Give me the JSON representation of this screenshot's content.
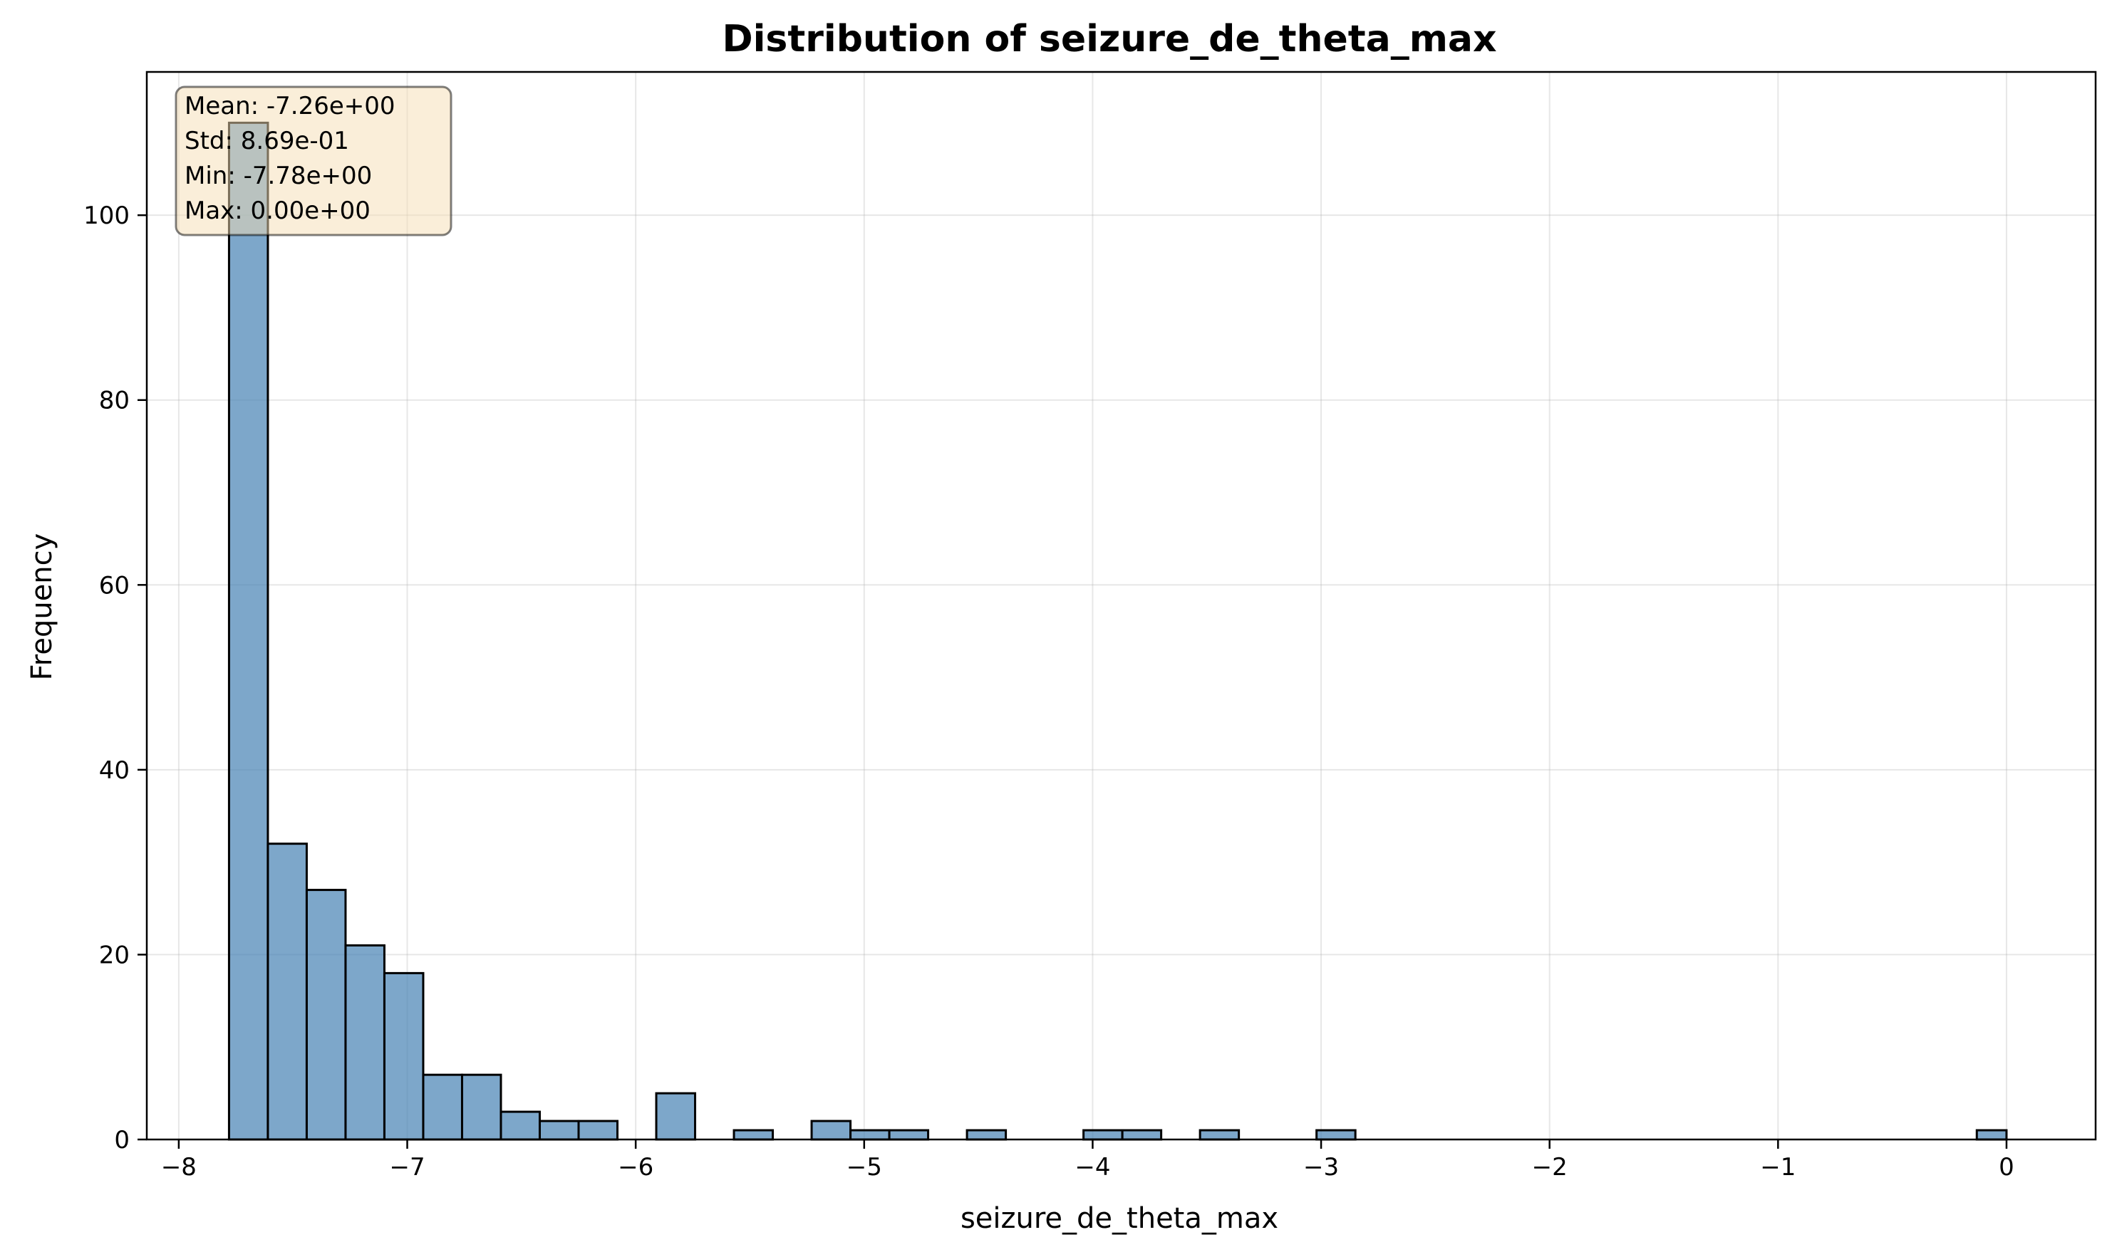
{
  "chart_data": {
    "type": "bar",
    "title": "Distribution of seizure_de_theta_max",
    "xlabel": "seizure_de_theta_max",
    "ylabel": "Frequency",
    "xlim": [
      -8.14,
      0.39
    ],
    "ylim": [
      0,
      115.5
    ],
    "x_ticks": [
      -8,
      -7,
      -6,
      -5,
      -4,
      -3,
      -2,
      -1,
      0
    ],
    "y_ticks": [
      0,
      20,
      40,
      60,
      80,
      100
    ],
    "grid": true,
    "bin_edges": [
      -7.78,
      -7.61,
      -7.44,
      -7.27,
      -7.1,
      -6.93,
      -6.76,
      -6.59,
      -6.42,
      -6.25,
      -6.08,
      -5.91,
      -5.74,
      -5.57,
      -5.4,
      -5.23,
      -5.06,
      -4.89,
      -4.72,
      -4.55,
      -4.38,
      -4.21,
      -4.04,
      -3.87,
      -3.7,
      -3.53,
      -3.36,
      -3.19,
      -3.02,
      -2.85,
      -2.68,
      -2.51,
      -2.34,
      -2.17,
      -2.0,
      -1.83,
      -1.66,
      -1.49,
      -1.32,
      -1.15,
      -0.98,
      -0.81,
      -0.64,
      -0.47,
      -0.3,
      -0.13,
      0.0
    ],
    "values": [
      110,
      32,
      27,
      21,
      18,
      7,
      7,
      3,
      2,
      2,
      0,
      5,
      0,
      1,
      0,
      2,
      1,
      1,
      0,
      1,
      0,
      0,
      1,
      1,
      0,
      1,
      0,
      0,
      1,
      0,
      0,
      0,
      0,
      0,
      0,
      0,
      0,
      0,
      0,
      0,
      0,
      0,
      0,
      0,
      0,
      1
    ],
    "stats": {
      "mean": "Mean: -7.26e+00",
      "std": "Std: 8.69e-01",
      "min": "Min: -7.78e+00",
      "max": "Max: 0.00e+00"
    },
    "stats_placement": "top-left",
    "bar_color": "#4682b4",
    "stats_box_color": "#f5deb3"
  }
}
